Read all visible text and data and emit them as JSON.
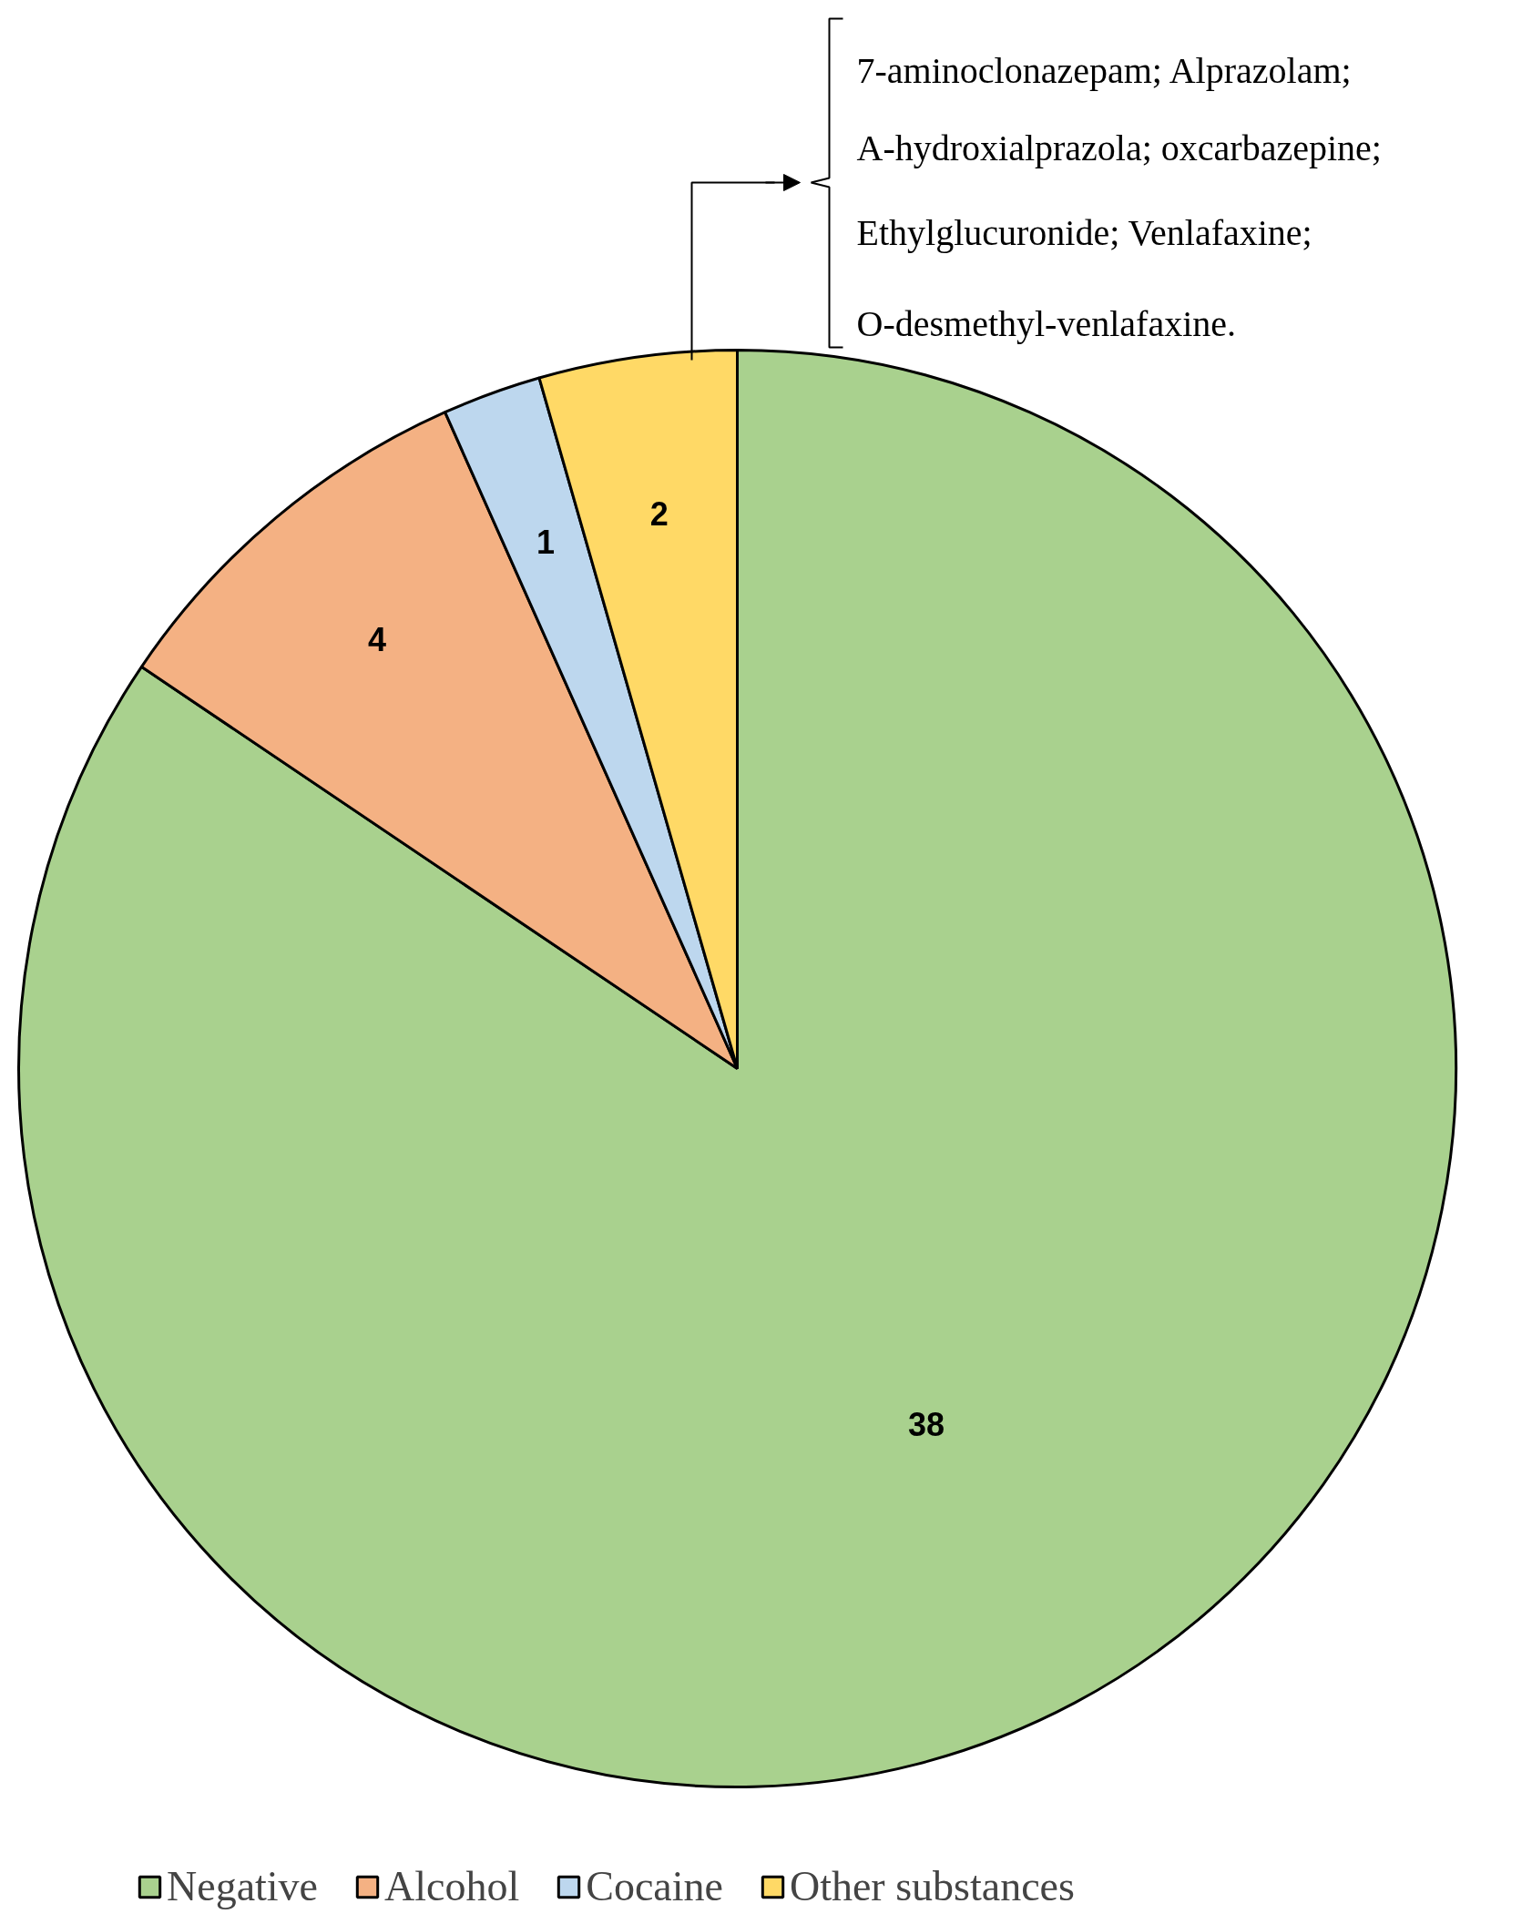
{
  "chart_data": {
    "type": "pie",
    "categories": [
      "Negative",
      "Alcohol",
      "Cocaine",
      "Other substances"
    ],
    "values": [
      38,
      4,
      1,
      2
    ],
    "colors": [
      "#a9d18e",
      "#f4b183",
      "#bdd7ee",
      "#ffd966"
    ],
    "data_labels": true,
    "legend": "bottom",
    "annotations": [
      "7-aminoclonazepam;  Alprazolam;",
      "A-hydroxialprazola;  oxcarbazepine;",
      "Ethylglucuronide; Venlafaxine;",
      "O-desmethyl-venlafaxine."
    ]
  }
}
